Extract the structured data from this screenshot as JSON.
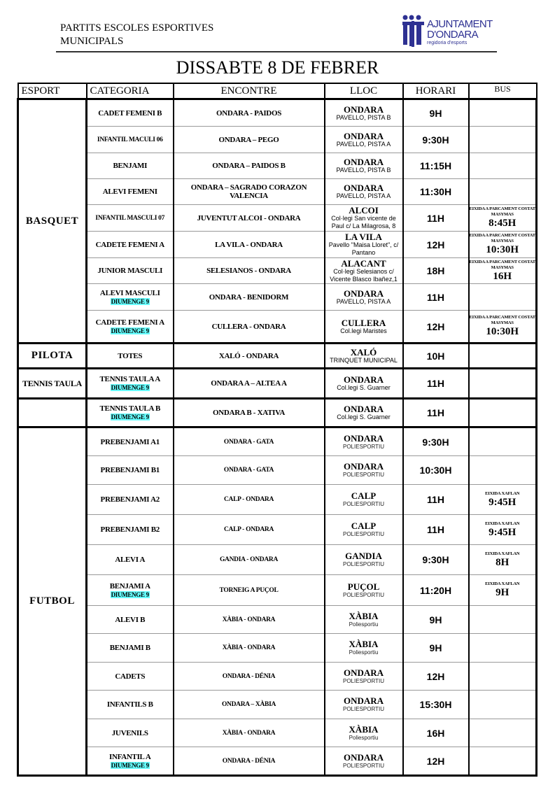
{
  "header": {
    "title_line1": "PARTITS ESCOLES ESPORTIVES",
    "title_line2": "MUNICIPALS",
    "logo": {
      "line1": "AJUNTAMENT",
      "line2": "D'ONDARA",
      "line3": "regidoria d'esports",
      "color": "#2e3192"
    }
  },
  "day_title": "DISSABTE 8 DE FEBRER",
  "columns": {
    "esport": "ESPORT",
    "categoria": "CATEGORIA",
    "encontre": "ENCONTRE",
    "lloc": "LLOC",
    "horari": "HORARI",
    "bus": "BUS"
  },
  "highlight_color": "#66ffff",
  "groups": [
    {
      "esport": "BASQUET",
      "rows": [
        {
          "categoria": "CADET FEMENI B",
          "encontre": "ONDARA - PAIDOS",
          "lloc": "ONDARA",
          "lloc_detail": "PAVELLO, PISTA  B",
          "horari": "9H"
        },
        {
          "categoria": "INFANTIL MACULI 06",
          "encontre": "ONDARA – PEGO",
          "lloc": "ONDARA",
          "lloc_detail": "PAVELLO, PISTA  A",
          "horari": "9:30H"
        },
        {
          "categoria": "BENJAMI",
          "encontre": "ONDARA – PAIDOS B",
          "lloc": "ONDARA",
          "lloc_detail": "PAVELLO, PISTA  B",
          "horari": "11:15H"
        },
        {
          "categoria": "ALEVI FEMENI",
          "encontre": "ONDARA – SAGRADO CORAZON VALENCIA",
          "lloc": "ONDARA",
          "lloc_detail": "PAVELLO, PISTA  A",
          "horari": "11:30H"
        },
        {
          "categoria": "INFANTIL MASCULI 07",
          "encontre": "JUVENTUT ALCOI - ONDARA",
          "lloc": "ALCOI",
          "lloc_detail": "Col·legi San vicente de Paul c/ La Milagrosa, 8",
          "horari": "11H",
          "bus_note": "EIXIDA A PARCAMENT COSTAT MASYMAS",
          "bus_time": "8:45H"
        },
        {
          "categoria": "CADETE FEMENI A",
          "encontre": "LA VILA  - ONDARA",
          "lloc": "LA VILA",
          "lloc_detail": "Pavello \"Maisa Lloret\", c/ Pantano",
          "horari": "12H",
          "bus_note": "EIXIDA A PARCAMENT COSTAT MASYMAS",
          "bus_time": "10:30H"
        },
        {
          "categoria": "JUNIOR MASCULI",
          "encontre": "SELESIANOS -  ONDARA",
          "lloc": "ALACANT",
          "lloc_detail": "Col·legi Selesianos c/ Vicente Blasco Ibañez,1",
          "horari": "18H",
          "bus_note": "EIXIDA A PARCAMENT COSTAT MASYMAS",
          "bus_time": "16H"
        },
        {
          "categoria": "ALEVI MASCULI",
          "note": "DIUMENGE 9",
          "encontre": "ONDARA - BENIDORM",
          "lloc": "ONDARA",
          "lloc_detail": "PAVELLO, PISTA  A",
          "horari": "11H"
        },
        {
          "categoria": "CADETE FEMENI A",
          "note": "DIUMENGE 9",
          "encontre": "CULLERA - ONDARA",
          "lloc": "CULLERA",
          "lloc_detail": "Col.legi Maristes",
          "horari": "12H",
          "bus_note": "EIXIDA A PARCAMENT COSTAT MASYMAS",
          "bus_time": "10:30H"
        }
      ]
    },
    {
      "esport": "PILOTA",
      "rows": [
        {
          "categoria": "TOTES",
          "encontre": "XALÓ - ONDARA",
          "lloc": "XALÓ",
          "lloc_detail": "TRINQUET MUNICIPAL",
          "horari": "10H"
        }
      ]
    },
    {
      "esport": "TENNIS TAULA",
      "rows": [
        {
          "categoria": "TENNIS TAULA  A",
          "note": "DIUMENGE 9",
          "encontre": "ONDARA A – ALTEA  A",
          "lloc": "ONDARA",
          "lloc_detail": "Col.legi S. Guarner",
          "horari": "11H"
        }
      ]
    },
    {
      "esport": "",
      "rows": [
        {
          "categoria": "TENNIS TAULA B",
          "note": "DIUMENGE 9",
          "encontre": "ONDARA B - XATIVA",
          "lloc": "ONDARA",
          "lloc_detail": "Col.legi S. Guarner",
          "horari": "11H"
        }
      ]
    },
    {
      "esport": "FUTBOL",
      "rows": [
        {
          "categoria": "PREBENJAMI A1",
          "encontre": "ONDARA - GATA",
          "lloc": "ONDARA",
          "lloc_detail": "POLIESPORTIU",
          "horari": "9:30H"
        },
        {
          "categoria": "PREBENJAMI B1",
          "encontre": "ONDARA - GATA",
          "lloc": "ONDARA",
          "lloc_detail": "POLIESPORTIU",
          "horari": "10:30H"
        },
        {
          "categoria": "PREBENJAMI A2",
          "encontre": "CALP - ONDARA",
          "lloc": "CALP",
          "lloc_detail": "POLIESPORTIU",
          "horari": "11H",
          "bus_note": "EIXIDA XAFLAN",
          "bus_time": "9:45H"
        },
        {
          "categoria": "PREBENJAMI B2",
          "encontre": "CALP - ONDARA",
          "lloc": "CALP",
          "lloc_detail": "POLIESPORTIU",
          "horari": "11H",
          "bus_note": "EIXIDA XAFLAN",
          "bus_time": "9:45H"
        },
        {
          "categoria": "ALEVI A",
          "encontre": "GANDIA -  ONDARA",
          "lloc": "GANDIA",
          "lloc_detail": "POLIESPORTIU",
          "horari": "9:30H",
          "bus_note": "EIXIDA XAFLAN",
          "bus_time": "8H"
        },
        {
          "categoria": "BENJAMI A",
          "note": "DIUMENGE 9",
          "encontre": "TORNEIG A PUÇOL",
          "lloc": "PUÇOL",
          "lloc_detail": "POLIESPORTIU",
          "horari": "11:20H",
          "bus_note": "EIXIDA XAFLAN",
          "bus_time": "9H"
        },
        {
          "categoria": "ALEVI B",
          "encontre": "XÀBIA - ONDARA",
          "lloc": "XÀBIA",
          "lloc_detail": "Poliesportiu",
          "horari": "9H"
        },
        {
          "categoria": "BENJAMI B",
          "encontre": "XÀBIA - ONDARA",
          "lloc": "XÀBIA",
          "lloc_detail": "Poliesportiu",
          "horari": "9H"
        },
        {
          "categoria": "CADETS",
          "encontre": "ONDARA - DÉNIA",
          "lloc": "ONDARA",
          "lloc_detail": "POLIESPORTIU",
          "horari": "12H"
        },
        {
          "categoria": "INFANTILS B",
          "encontre": "ONDARA – XÀBIA",
          "lloc": "ONDARA",
          "lloc_detail": "POLIESPORTIU",
          "horari": "15:30H"
        },
        {
          "categoria": "JUVENILS",
          "encontre": "XÀBIA - ONDARA",
          "lloc": "XÀBIA",
          "lloc_detail": "Poliesportiu",
          "horari": "16H"
        },
        {
          "categoria": "INFANTIL A",
          "note": "DIUMENGE 9",
          "encontre": "ONDARA - DÉNIA",
          "lloc": "ONDARA",
          "lloc_detail": "POLIESPORTIU",
          "horari": "12H"
        }
      ]
    }
  ]
}
